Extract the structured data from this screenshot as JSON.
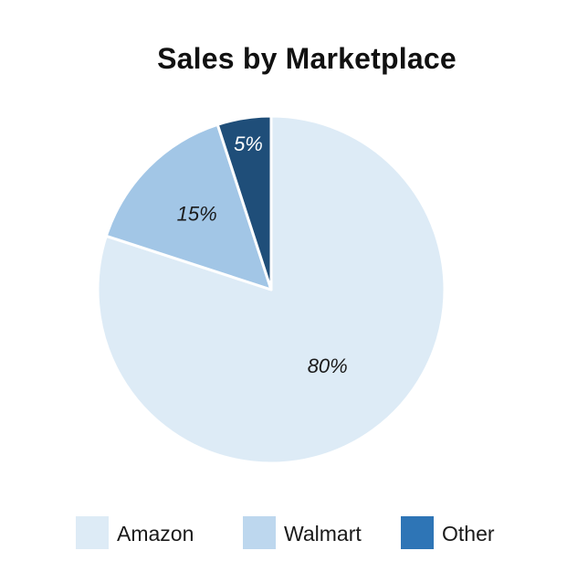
{
  "chart_data": {
    "type": "pie",
    "title": "Sales by Marketplace",
    "categories": [
      "Amazon",
      "Walmart",
      "Other"
    ],
    "values": [
      80,
      15,
      5
    ],
    "value_labels": [
      "80%",
      "15%",
      "5%"
    ],
    "slice_colors": [
      "#ddebf6",
      "#a2c6e6",
      "#1f4e79"
    ],
    "label_colors": [
      "#1a1a1a",
      "#1a1a1a",
      "#ffffff"
    ],
    "legend": {
      "placement": "bottom",
      "entries": [
        {
          "name": "Amazon",
          "color": "#ddebf6"
        },
        {
          "name": "Walmart",
          "color": "#bdd7ee"
        },
        {
          "name": "Other",
          "color": "#2e75b6"
        }
      ]
    }
  }
}
